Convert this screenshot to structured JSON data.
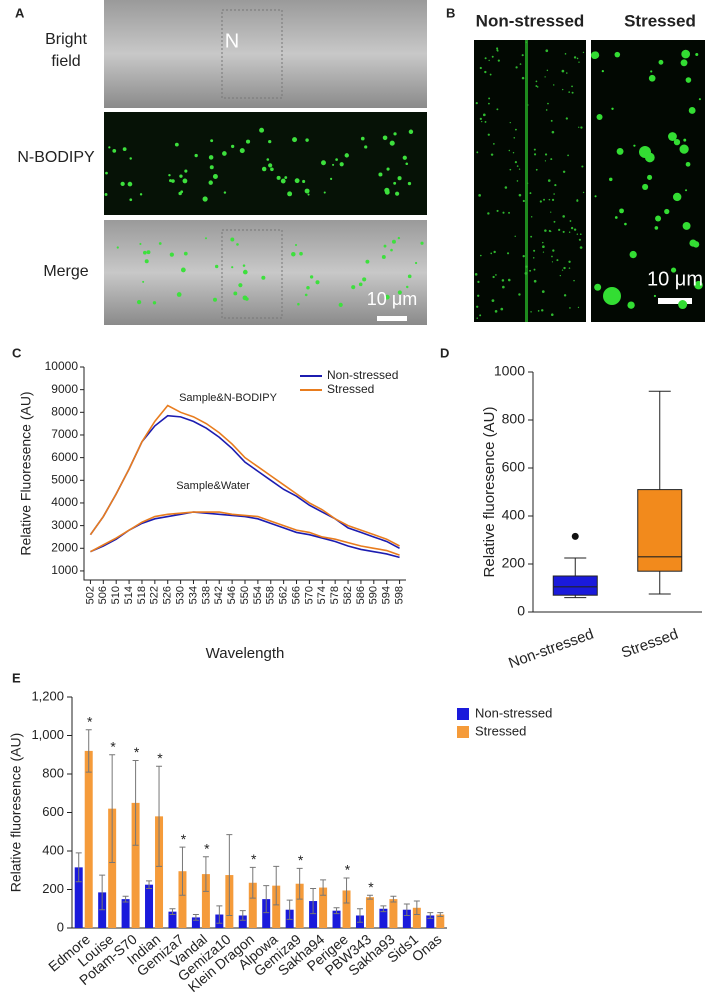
{
  "images": {
    "a": {
      "panel_label": "A",
      "rows": [
        "Bright field",
        "N-BODIPY",
        "Merge"
      ],
      "marker": "N",
      "scale_bar": "10 μm"
    },
    "b": {
      "panel_label": "B",
      "columns": [
        "Non-stressed",
        "Stressed"
      ],
      "scale_bar": "10 μm"
    }
  },
  "chart_data": [
    {
      "type": "line",
      "panel_label": "C",
      "xlabel": "Wavelength",
      "ylabel": "Relative Fluoresence (AU)",
      "x": [
        502,
        506,
        510,
        514,
        518,
        522,
        526,
        530,
        534,
        538,
        542,
        546,
        550,
        554,
        558,
        562,
        566,
        570,
        574,
        578,
        582,
        586,
        590,
        594,
        598
      ],
      "xlim": [
        500,
        600
      ],
      "xticks": [
        502,
        506,
        510,
        514,
        518,
        522,
        526,
        530,
        534,
        538,
        542,
        546,
        550,
        554,
        558,
        562,
        566,
        570,
        574,
        578,
        582,
        586,
        590,
        594,
        598
      ],
      "ylim": [
        600,
        10000
      ],
      "yticks": [
        1000,
        2000,
        3000,
        4000,
        5000,
        6000,
        7000,
        8000,
        9000,
        10000
      ],
      "annotations": [
        "Sample&N-BODIPY",
        "Sample&Water"
      ],
      "series": [
        {
          "name": "Non-stressed",
          "color": "#1c1cb0",
          "lines": [
            [
              2600,
              3400,
              4400,
              5500,
              6700,
              7400,
              7850,
              7800,
              7600,
              7300,
              6900,
              6400,
              5800,
              5400,
              5000,
              4600,
              4300,
              3900,
              3600,
              3300,
              2900,
              2700,
              2500,
              2300,
              2000
            ],
            [
              1850,
              2100,
              2400,
              2800,
              3100,
              3300,
              3400,
              3500,
              3600,
              3550,
              3500,
              3450,
              3400,
              3300,
              3100,
              2900,
              2700,
              2600,
              2450,
              2300,
              2100,
              1950,
              1850,
              1750,
              1600
            ]
          ]
        },
        {
          "name": "Stressed",
          "color": "#e87c1e",
          "lines": [
            [
              2600,
              3400,
              4400,
              5500,
              6700,
              7600,
              8300,
              8000,
              7800,
              7500,
              7100,
              6600,
              6000,
              5600,
              5200,
              4800,
              4400,
              4000,
              3700,
              3300,
              3000,
              2800,
              2600,
              2400,
              2100
            ],
            [
              1850,
              2150,
              2450,
              2800,
              3150,
              3400,
              3500,
              3550,
              3600,
              3600,
              3600,
              3500,
              3450,
              3400,
              3200,
              3000,
              2800,
              2700,
              2500,
              2400,
              2250,
              2100,
              2000,
              1900,
              1700
            ]
          ]
        }
      ]
    },
    {
      "type": "box",
      "panel_label": "D",
      "ylabel": "Relative fluoresence (AU)",
      "categories": [
        "Non-stressed",
        "Stressed"
      ],
      "colors": [
        "#1a1adb",
        "#f28a1c"
      ],
      "ylim": [
        0,
        1000
      ],
      "yticks": [
        0,
        200,
        400,
        600,
        800,
        1000
      ],
      "boxes": [
        {
          "whisker_low": 60,
          "q1": 70,
          "median": 105,
          "q3": 150,
          "whisker_high": 225,
          "outliers": [
            315
          ]
        },
        {
          "whisker_low": 75,
          "q1": 170,
          "median": 230,
          "q3": 510,
          "whisker_high": 920,
          "outliers": []
        }
      ]
    },
    {
      "type": "bar",
      "panel_label": "E",
      "ylabel": "Relative fluoresence (AU)",
      "categories": [
        "Edmore",
        "Louise",
        "Potam-S70",
        "Indian",
        "Gemiza7",
        "Vandal",
        "Gemiza10",
        "Klein Dragon",
        "Alpowa",
        "Gemiza9",
        "Sakha94",
        "Perigee",
        "PBW343",
        "Sakha93",
        "Sids1",
        "Onas"
      ],
      "ylim": [
        0,
        1200
      ],
      "yticks": [
        0,
        200,
        400,
        600,
        800,
        {
          "value": 1000,
          "label": "1,000"
        },
        {
          "value": 1200,
          "label": "1,200"
        }
      ],
      "series": [
        {
          "name": "Non-stressed",
          "color": "#1a1adb",
          "values": [
            315,
            185,
            150,
            225,
            85,
            55,
            70,
            65,
            150,
            95,
            140,
            90,
            65,
            100,
            95,
            65
          ],
          "errors": [
            75,
            90,
            15,
            20,
            15,
            15,
            45,
            25,
            70,
            50,
            65,
            15,
            35,
            15,
            30,
            15
          ]
        },
        {
          "name": "Stressed",
          "color": "#f59b3a",
          "values": [
            920,
            620,
            650,
            580,
            295,
            280,
            275,
            235,
            220,
            230,
            210,
            195,
            160,
            150,
            105,
            70
          ],
          "errors": [
            110,
            280,
            220,
            260,
            125,
            90,
            210,
            80,
            100,
            80,
            40,
            65,
            10,
            15,
            35,
            10
          ]
        }
      ],
      "significance": [
        "*",
        "*",
        "*",
        "*",
        "*",
        "*",
        null,
        "*",
        null,
        "*",
        null,
        "*",
        "*",
        null,
        null,
        null
      ]
    }
  ]
}
